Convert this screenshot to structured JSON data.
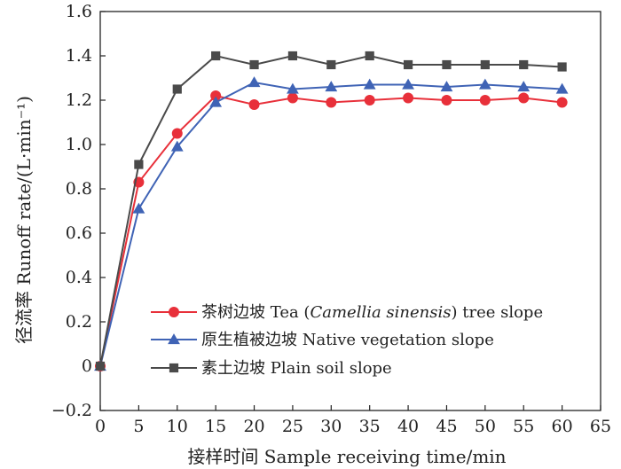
{
  "chart_data": {
    "type": "line",
    "xlabel": "接样时间 Sample receiving time/min",
    "ylabel": "径流率 Runoff rate/(L·min⁻¹)",
    "xlim": [
      0,
      65
    ],
    "ylim": [
      -0.2,
      1.6
    ],
    "xticks": [
      0,
      5,
      10,
      15,
      20,
      25,
      30,
      35,
      40,
      45,
      50,
      55,
      60,
      65
    ],
    "yticks": [
      -0.2,
      0,
      0.2,
      0.4,
      0.6,
      0.8,
      1.0,
      1.2,
      1.4,
      1.6
    ],
    "ytick_labels": [
      "−0.2",
      "0",
      "0.2",
      "0.4",
      "0.6",
      "0.8",
      "1.0",
      "1.2",
      "1.4",
      "1.6"
    ],
    "x": [
      0,
      5,
      10,
      15,
      20,
      25,
      30,
      35,
      40,
      45,
      50,
      55,
      60
    ],
    "series": [
      {
        "name": "茶树边坡 Tea (Camellia sinensis) tree slope",
        "name_prefix": "茶树边坡 Tea (",
        "name_italic": "Camellia sinensis",
        "name_suffix": ") tree slope",
        "color": "#e8303a",
        "marker": "circle",
        "values": [
          0,
          0.83,
          1.05,
          1.22,
          1.18,
          1.21,
          1.19,
          1.2,
          1.21,
          1.2,
          1.2,
          1.21,
          1.19
        ]
      },
      {
        "name": "原生植被边坡 Native vegetation slope",
        "color": "#3f63b5",
        "marker": "triangle",
        "values": [
          0,
          0.71,
          0.99,
          1.19,
          1.28,
          1.25,
          1.26,
          1.27,
          1.27,
          1.26,
          1.27,
          1.26,
          1.25
        ]
      },
      {
        "name": "素土边坡 Plain soil slope",
        "color": "#4a4a4a",
        "marker": "square",
        "values": [
          0,
          0.91,
          1.25,
          1.4,
          1.36,
          1.4,
          1.36,
          1.4,
          1.36,
          1.36,
          1.36,
          1.36,
          1.35
        ]
      }
    ]
  }
}
